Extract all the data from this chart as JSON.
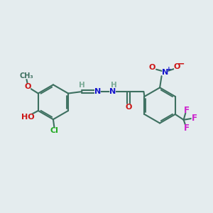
{
  "bg_color": "#e4ecee",
  "bond_color": "#3d7060",
  "bond_width": 1.5,
  "atom_colors": {
    "C": "#3d7060",
    "H": "#7aaa96",
    "N_blue": "#1515cc",
    "O_red": "#cc1515",
    "Cl_green": "#22aa22",
    "F_pink": "#cc22cc",
    "minus": "#cc1515",
    "plus": "#1515cc"
  },
  "figsize": [
    3.0,
    3.0
  ],
  "dpi": 100,
  "xlim": [
    0,
    9.5
  ],
  "ylim": [
    0.5,
    9.5
  ]
}
